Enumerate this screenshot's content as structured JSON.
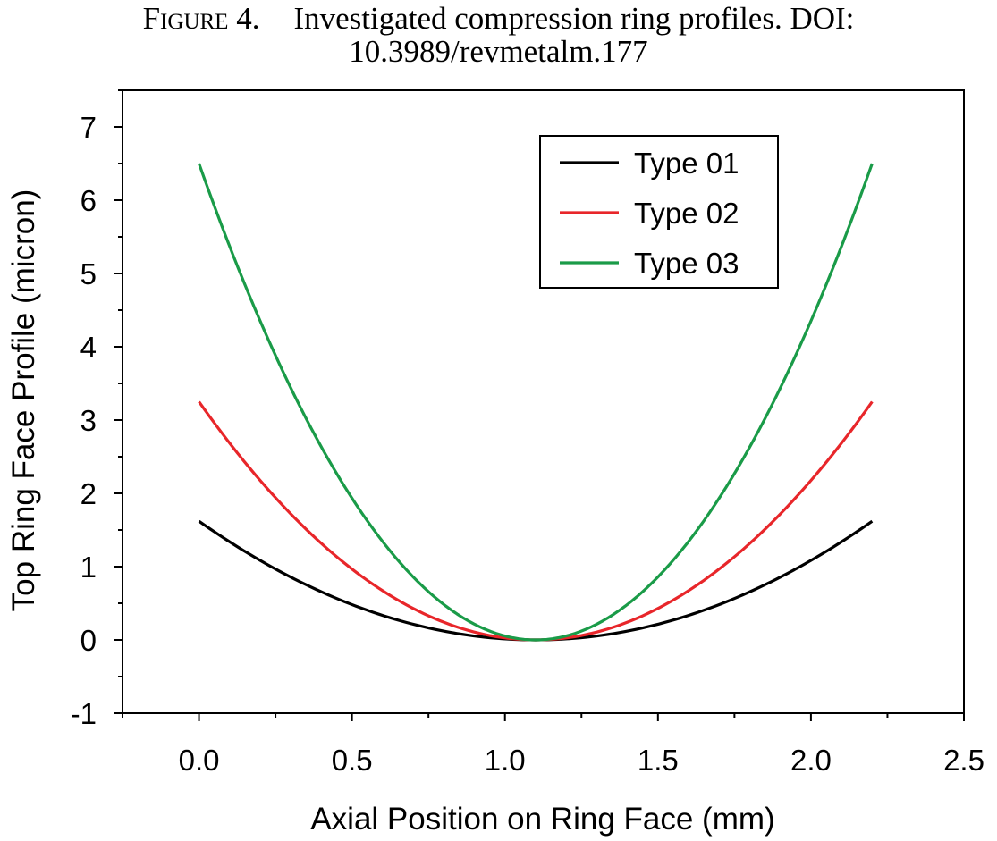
{
  "caption": {
    "label": "Figure 4.",
    "line1": "Investigated compression ring profiles. DOI:",
    "line2": "10.3989/revmetalm.177"
  },
  "colors": {
    "type01": "#000000",
    "type02": "#e8262a",
    "type03": "#1a9b48"
  },
  "chart_data": {
    "type": "line",
    "xlabel": "Axial Position on Ring Face (mm)",
    "ylabel": "Top Ring Face Profile (micron)",
    "xlim": [
      -0.25,
      2.5
    ],
    "ylim": [
      -1,
      7.5
    ],
    "xticks": [
      0.0,
      0.5,
      1.0,
      1.5,
      2.0,
      2.5
    ],
    "xtick_labels": [
      "0.0",
      "0.5",
      "1.0",
      "1.5",
      "2.0",
      "2.5"
    ],
    "yticks": [
      -1,
      0,
      1,
      2,
      3,
      4,
      5,
      6,
      7
    ],
    "ytick_labels": [
      "-1",
      "0",
      "1",
      "2",
      "3",
      "4",
      "5",
      "6",
      "7"
    ],
    "grid": false,
    "legend_position": "top-right",
    "x": [
      0.0,
      0.1,
      0.2,
      0.3,
      0.4,
      0.5,
      0.6,
      0.7,
      0.8,
      0.9,
      1.0,
      1.1,
      1.2,
      1.3,
      1.4,
      1.5,
      1.6,
      1.7,
      1.8,
      1.9,
      2.0,
      2.1,
      2.2
    ],
    "series": [
      {
        "name": "Type 01",
        "color": "#000000",
        "values": [
          1.62,
          1.34,
          1.09,
          0.86,
          0.66,
          0.48,
          0.34,
          0.21,
          0.12,
          0.05,
          0.01,
          0.0,
          0.01,
          0.05,
          0.12,
          0.21,
          0.34,
          0.48,
          0.66,
          0.86,
          1.09,
          1.34,
          1.62
        ]
      },
      {
        "name": "Type 02",
        "color": "#e8262a",
        "values": [
          3.25,
          2.69,
          2.17,
          1.72,
          1.31,
          0.97,
          0.67,
          0.43,
          0.24,
          0.11,
          0.03,
          0.0,
          0.03,
          0.11,
          0.24,
          0.43,
          0.67,
          0.97,
          1.31,
          1.72,
          2.17,
          2.69,
          3.25
        ]
      },
      {
        "name": "Type 03",
        "color": "#1a9b48",
        "values": [
          6.5,
          5.37,
          4.35,
          3.44,
          2.63,
          1.93,
          1.34,
          0.86,
          0.48,
          0.21,
          0.05,
          0.0,
          0.05,
          0.21,
          0.48,
          0.86,
          1.34,
          1.93,
          2.63,
          3.44,
          4.35,
          5.37,
          6.5
        ]
      }
    ]
  }
}
